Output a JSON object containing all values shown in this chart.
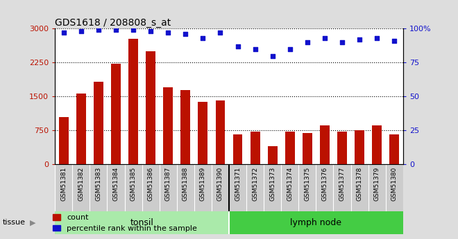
{
  "title": "GDS1618 / 208808_s_at",
  "categories": [
    "GSM51381",
    "GSM51382",
    "GSM51383",
    "GSM51384",
    "GSM51385",
    "GSM51386",
    "GSM51387",
    "GSM51388",
    "GSM51389",
    "GSM51390",
    "GSM51371",
    "GSM51372",
    "GSM51373",
    "GSM51374",
    "GSM51375",
    "GSM51376",
    "GSM51377",
    "GSM51378",
    "GSM51379",
    "GSM51380"
  ],
  "counts": [
    1050,
    1570,
    1820,
    2220,
    2780,
    2500,
    1700,
    1640,
    1390,
    1420,
    670,
    720,
    400,
    720,
    700,
    870,
    730,
    760,
    870,
    660
  ],
  "percentiles": [
    97,
    98,
    99,
    99,
    99,
    98,
    97,
    96,
    93,
    97,
    87,
    85,
    80,
    85,
    90,
    93,
    90,
    92,
    93,
    91
  ],
  "bar_color": "#bb1100",
  "dot_color": "#1111cc",
  "ylim_left": [
    0,
    3000
  ],
  "ylim_right": [
    0,
    100
  ],
  "yticks_left": [
    0,
    750,
    1500,
    2250,
    3000
  ],
  "yticks_right": [
    0,
    25,
    50,
    75,
    100
  ],
  "right_tick_labels": [
    "0",
    "25",
    "50",
    "75",
    "100%"
  ],
  "tissue_groups": [
    {
      "label": "tonsil",
      "start": 0,
      "end": 10,
      "color": "#aaeaaa"
    },
    {
      "label": "lymph node",
      "start": 10,
      "end": 20,
      "color": "#44cc44"
    }
  ],
  "tissue_label": "tissue",
  "legend_count_label": "count",
  "legend_pct_label": "percentile rank within the sample",
  "fig_bg_color": "#dddddd",
  "plot_bg_color": "#ffffff",
  "xtick_bg_color": "#cccccc",
  "bar_width": 0.55
}
